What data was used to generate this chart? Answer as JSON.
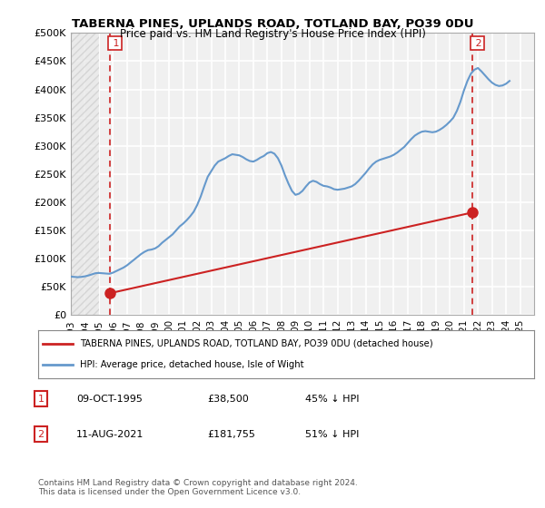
{
  "title": "TABERNA PINES, UPLANDS ROAD, TOTLAND BAY, PO39 0DU",
  "subtitle": "Price paid vs. HM Land Registry's House Price Index (HPI)",
  "ylabel": "",
  "ylim": [
    0,
    500000
  ],
  "yticks": [
    0,
    50000,
    100000,
    150000,
    200000,
    250000,
    300000,
    350000,
    400000,
    450000,
    500000
  ],
  "ytick_labels": [
    "£0",
    "£50K",
    "£100K",
    "£150K",
    "£200K",
    "£250K",
    "£300K",
    "£350K",
    "£400K",
    "£450K",
    "£500K"
  ],
  "xlim_start": 1993.0,
  "xlim_end": 2026.0,
  "hpi_color": "#6699cc",
  "price_color": "#cc2222",
  "dot_color": "#cc2222",
  "vline_color": "#cc2222",
  "background_color": "#ffffff",
  "plot_bg_color": "#f0f0f0",
  "hatch_color": "#cccccc",
  "grid_color": "#ffffff",
  "legend_label_price": "TABERNA PINES, UPLANDS ROAD, TOTLAND BAY, PO39 0DU (detached house)",
  "legend_label_hpi": "HPI: Average price, detached house, Isle of Wight",
  "annotation1_num": "1",
  "annotation1_date": "09-OCT-1995",
  "annotation1_price": "£38,500",
  "annotation1_hpi": "45% ↓ HPI",
  "annotation2_num": "2",
  "annotation2_date": "11-AUG-2021",
  "annotation2_price": "£181,755",
  "annotation2_hpi": "51% ↓ HPI",
  "footnote": "Contains HM Land Registry data © Crown copyright and database right 2024.\nThis data is licensed under the Open Government Licence v3.0.",
  "sale1_x": 1995.77,
  "sale1_y": 38500,
  "sale2_x": 2021.61,
  "sale2_y": 181755,
  "hpi_data_x": [
    1993.0,
    1993.25,
    1993.5,
    1993.75,
    1994.0,
    1994.25,
    1994.5,
    1994.75,
    1995.0,
    1995.25,
    1995.5,
    1995.75,
    1996.0,
    1996.25,
    1996.5,
    1996.75,
    1997.0,
    1997.25,
    1997.5,
    1997.75,
    1998.0,
    1998.25,
    1998.5,
    1998.75,
    1999.0,
    1999.25,
    1999.5,
    1999.75,
    2000.0,
    2000.25,
    2000.5,
    2000.75,
    2001.0,
    2001.25,
    2001.5,
    2001.75,
    2002.0,
    2002.25,
    2002.5,
    2002.75,
    2003.0,
    2003.25,
    2003.5,
    2003.75,
    2004.0,
    2004.25,
    2004.5,
    2004.75,
    2005.0,
    2005.25,
    2005.5,
    2005.75,
    2006.0,
    2006.25,
    2006.5,
    2006.75,
    2007.0,
    2007.25,
    2007.5,
    2007.75,
    2008.0,
    2008.25,
    2008.5,
    2008.75,
    2009.0,
    2009.25,
    2009.5,
    2009.75,
    2010.0,
    2010.25,
    2010.5,
    2010.75,
    2011.0,
    2011.25,
    2011.5,
    2011.75,
    2012.0,
    2012.25,
    2012.5,
    2012.75,
    2013.0,
    2013.25,
    2013.5,
    2013.75,
    2014.0,
    2014.25,
    2014.5,
    2014.75,
    2015.0,
    2015.25,
    2015.5,
    2015.75,
    2016.0,
    2016.25,
    2016.5,
    2016.75,
    2017.0,
    2017.25,
    2017.5,
    2017.75,
    2018.0,
    2018.25,
    2018.5,
    2018.75,
    2019.0,
    2019.25,
    2019.5,
    2019.75,
    2020.0,
    2020.25,
    2020.5,
    2020.75,
    2021.0,
    2021.25,
    2021.5,
    2021.75,
    2022.0,
    2022.25,
    2022.5,
    2022.75,
    2023.0,
    2023.25,
    2023.5,
    2023.75,
    2024.0,
    2024.25
  ],
  "hpi_data_y": [
    68000,
    67500,
    67000,
    67500,
    68500,
    70000,
    72000,
    74000,
    74500,
    74000,
    73500,
    73000,
    75000,
    78000,
    81000,
    84000,
    88000,
    93000,
    98000,
    103000,
    108000,
    112000,
    115000,
    116000,
    118000,
    122000,
    128000,
    133000,
    138000,
    143000,
    150000,
    157000,
    162000,
    168000,
    175000,
    183000,
    195000,
    210000,
    228000,
    245000,
    255000,
    265000,
    272000,
    275000,
    278000,
    282000,
    285000,
    284000,
    283000,
    280000,
    276000,
    273000,
    272000,
    275000,
    279000,
    282000,
    287000,
    289000,
    286000,
    278000,
    265000,
    248000,
    233000,
    220000,
    213000,
    215000,
    220000,
    228000,
    235000,
    238000,
    236000,
    232000,
    229000,
    228000,
    226000,
    223000,
    222000,
    223000,
    224000,
    226000,
    228000,
    232000,
    238000,
    245000,
    252000,
    260000,
    267000,
    272000,
    275000,
    277000,
    279000,
    281000,
    284000,
    288000,
    293000,
    298000,
    305000,
    312000,
    318000,
    322000,
    325000,
    326000,
    325000,
    324000,
    325000,
    328000,
    332000,
    337000,
    343000,
    350000,
    362000,
    378000,
    398000,
    415000,
    428000,
    435000,
    438000,
    432000,
    425000,
    418000,
    412000,
    408000,
    406000,
    407000,
    410000,
    415000
  ],
  "price_data_x": [
    1995.77,
    2021.61
  ],
  "price_data_y": [
    38500,
    181755
  ]
}
